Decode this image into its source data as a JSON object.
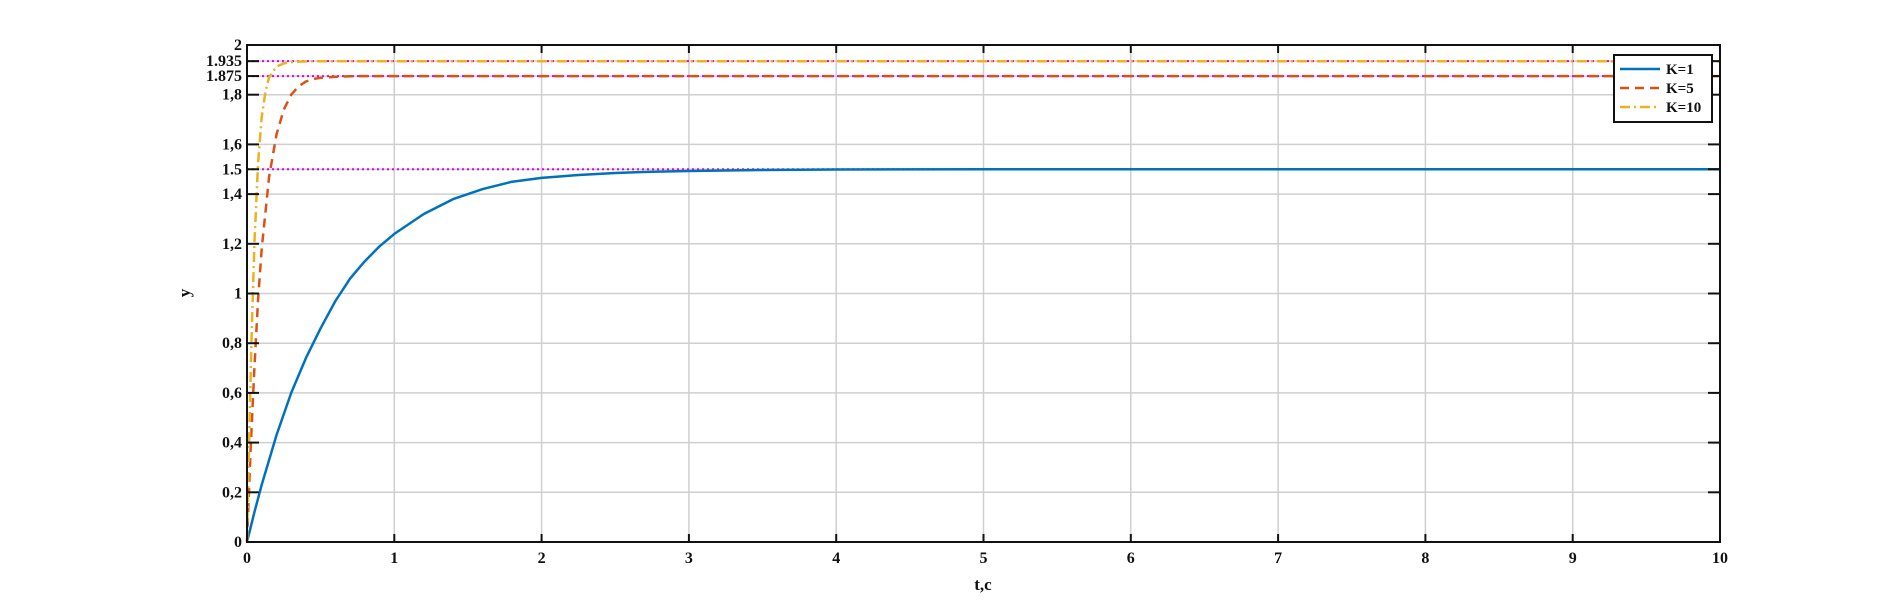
{
  "chart_data": {
    "type": "line",
    "title": "",
    "xlabel": "t,c",
    "ylabel": "y",
    "xlim": [
      0,
      10
    ],
    "ylim": [
      0,
      2
    ],
    "grid": true,
    "legend_position": "top-right",
    "x_ticks": [
      "0",
      "1",
      "2",
      "3",
      "4",
      "5",
      "6",
      "7",
      "8",
      "9",
      "10"
    ],
    "y_ticks": [
      {
        "value": 0,
        "label": "0"
      },
      {
        "value": 0.2,
        "label": "0,2"
      },
      {
        "value": 0.4,
        "label": "0,4"
      },
      {
        "value": 0.6,
        "label": "0,6"
      },
      {
        "value": 0.8,
        "label": "0,8"
      },
      {
        "value": 1.0,
        "label": "1"
      },
      {
        "value": 1.2,
        "label": "1,2"
      },
      {
        "value": 1.4,
        "label": "1,4"
      },
      {
        "value": 1.5,
        "label": "1.5"
      },
      {
        "value": 1.6,
        "label": "1,6"
      },
      {
        "value": 1.8,
        "label": "1,8"
      },
      {
        "value": 1.875,
        "label": "1.875"
      },
      {
        "value": 1.935,
        "label": "1.935"
      },
      {
        "value": 2.0,
        "label": "2"
      }
    ],
    "series": [
      {
        "name": "K=1",
        "color": "#0072BD",
        "style": "solid",
        "x": [
          0,
          0.05,
          0.1,
          0.15,
          0.2,
          0.3,
          0.4,
          0.5,
          0.6,
          0.7,
          0.8,
          0.9,
          1.0,
          1.2,
          1.4,
          1.6,
          1.8,
          2.0,
          2.25,
          2.5,
          2.75,
          3.0,
          3.5,
          4.0,
          5.0,
          6.0,
          7.0,
          8.0,
          9.0,
          10.0
        ],
        "y": [
          0,
          0.12,
          0.23,
          0.33,
          0.43,
          0.6,
          0.74,
          0.86,
          0.97,
          1.06,
          1.13,
          1.19,
          1.24,
          1.32,
          1.38,
          1.42,
          1.45,
          1.465,
          1.477,
          1.485,
          1.49,
          1.493,
          1.497,
          1.499,
          1.5,
          1.5,
          1.5,
          1.5,
          1.5,
          1.5
        ]
      },
      {
        "name": "K=5",
        "color": "#D95319",
        "style": "dashed",
        "x": [
          0,
          0.025,
          0.05,
          0.075,
          0.1,
          0.15,
          0.2,
          0.25,
          0.3,
          0.35,
          0.4,
          0.45,
          0.5,
          0.6,
          0.7,
          0.8,
          0.9,
          1.0,
          1.2,
          1.5,
          2.0,
          3.0,
          5.0,
          7.0,
          10.0
        ],
        "y": [
          0,
          0.38,
          0.7,
          0.97,
          1.18,
          1.47,
          1.64,
          1.74,
          1.8,
          1.834,
          1.853,
          1.863,
          1.868,
          1.872,
          1.874,
          1.875,
          1.875,
          1.875,
          1.875,
          1.875,
          1.875,
          1.875,
          1.875,
          1.875,
          1.875
        ]
      },
      {
        "name": "K=10",
        "color": "#EDB120",
        "style": "dashdot",
        "x": [
          0,
          0.015,
          0.03,
          0.05,
          0.075,
          0.1,
          0.125,
          0.15,
          0.2,
          0.25,
          0.3,
          0.35,
          0.4,
          0.5,
          0.6,
          0.8,
          1.0,
          1.5,
          2.0,
          3.0,
          5.0,
          7.0,
          10.0
        ],
        "y": [
          0,
          0.42,
          0.8,
          1.2,
          1.52,
          1.71,
          1.81,
          1.87,
          1.913,
          1.926,
          1.931,
          1.933,
          1.934,
          1.935,
          1.935,
          1.935,
          1.935,
          1.935,
          1.935,
          1.935,
          1.935,
          1.935,
          1.935
        ]
      }
    ],
    "reference_lines": [
      {
        "y": 1.935,
        "color": "#E000E0",
        "style": "dotted"
      },
      {
        "y": 1.875,
        "color": "#E000E0",
        "style": "dotted"
      },
      {
        "y": 1.5,
        "color": "#E000E0",
        "style": "dotted"
      }
    ]
  }
}
